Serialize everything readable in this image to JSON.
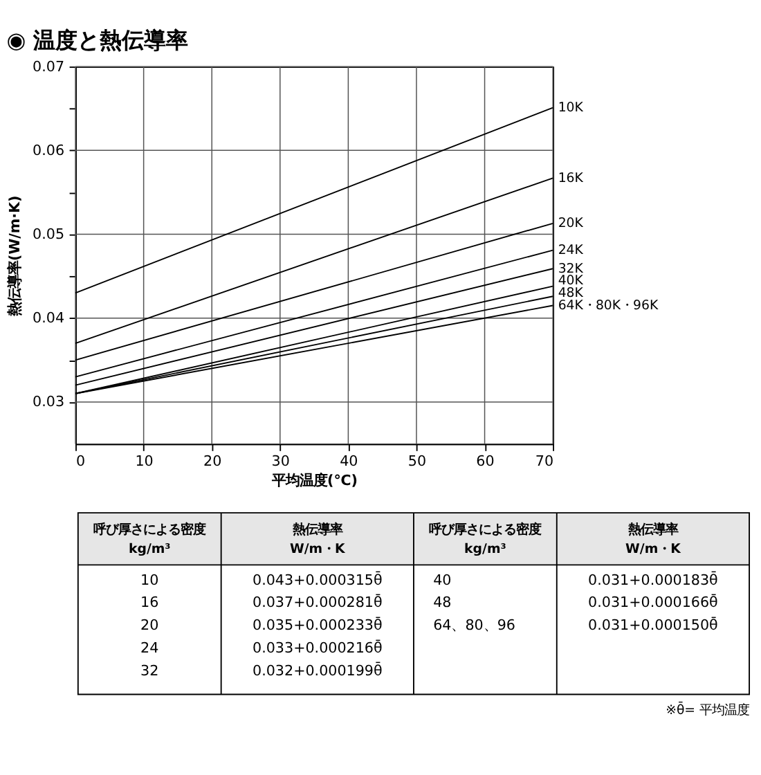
{
  "chart_data": {
    "type": "line",
    "title": "◉ 温度と熱伝導率",
    "xlabel": "平均温度(℃)",
    "ylabel": "熱伝導率(W/m·K)",
    "xlim": [
      0,
      70
    ],
    "ylim": [
      0.025,
      0.07
    ],
    "xticks": [
      0,
      10,
      20,
      30,
      40,
      50,
      60,
      70
    ],
    "yticks": [
      0.03,
      {
        "value": 0.035,
        "label": null
      },
      0.04,
      {
        "value": 0.045,
        "label": null
      },
      0.05,
      {
        "value": 0.055,
        "label": null
      },
      0.06,
      {
        "value": 0.065,
        "label": null
      },
      0.07
    ],
    "grid": true,
    "line_style": "solid",
    "marker": "none",
    "x": [
      0,
      70
    ],
    "series": [
      {
        "name": "10K",
        "color": "#000000",
        "values": [
          0.043,
          0.0651
        ]
      },
      {
        "name": "16K",
        "color": "#000000",
        "values": [
          0.037,
          0.0567
        ]
      },
      {
        "name": "20K",
        "color": "#000000",
        "values": [
          0.035,
          0.0513
        ]
      },
      {
        "name": "24K",
        "color": "#000000",
        "values": [
          0.033,
          0.0481
        ]
      },
      {
        "name": "32K",
        "color": "#000000",
        "values": [
          0.032,
          0.0459
        ]
      },
      {
        "name": "40K",
        "color": "#000000",
        "values": [
          0.031,
          0.0438
        ]
      },
      {
        "name": "48K",
        "color": "#000000",
        "values": [
          0.031,
          0.0426
        ]
      },
      {
        "name": "64K・80K・96K",
        "color": "#000000",
        "values": [
          0.031,
          0.0415
        ]
      }
    ],
    "annotations": [
      "呼び厚さによる密度\nkg/m³\t熱伝導率\nW/m・K\t呼び厚さによる密度\nkg/m³\t熱伝導率\nW/m・K",
      "10\t0.043+0.000315θ̄\t40\t0.031+0.000183θ̄",
      "16\t0.037+0.000281θ̄\t48\t0.031+0.000166θ̄",
      "20\t0.035+0.000233θ̄\t64、80、96\t0.031+0.000150θ̄",
      "24\t0.033+0.000216θ̄\t\t",
      "32\t0.032+0.000199θ̄\t\t",
      "※θ̄= 平均温度"
    ]
  }
}
